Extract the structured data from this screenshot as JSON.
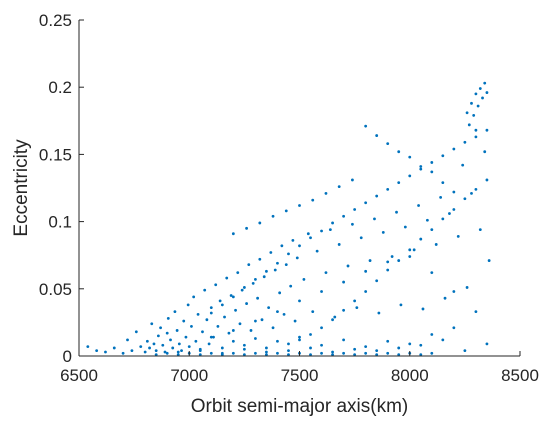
{
  "chart_data": {
    "type": "scatter",
    "title": "",
    "xlabel": "Orbit semi-major axis(km)",
    "ylabel": "Eccentricity",
    "xlim": [
      6500,
      8500
    ],
    "ylim": [
      0,
      0.25
    ],
    "x_ticks": [
      6500,
      7000,
      7500,
      8000,
      8500
    ],
    "y_ticks": [
      0,
      0.05,
      0.1,
      0.15,
      0.2,
      0.25
    ],
    "x_tick_labels": [
      "6500",
      "7000",
      "7500",
      "8000",
      "8500"
    ],
    "y_tick_labels": [
      "0",
      "0.05",
      "0.1",
      "0.15",
      "0.2",
      "0.25"
    ],
    "grid": false,
    "legend": "none",
    "marker_color": "#0072BD",
    "axis_color": "#262626",
    "series": [
      {
        "x": [
          6540,
          6580,
          6620,
          6660,
          6700,
          6720,
          6740,
          6760,
          6780,
          6800,
          6810,
          6820,
          6830,
          6840,
          6850,
          6860,
          6870,
          6880,
          6890,
          6900,
          6905,
          6915,
          6925,
          6935,
          6945,
          6955,
          6965,
          6975,
          6985,
          6995,
          7000,
          7010,
          7020,
          7030,
          7040,
          7050,
          7060,
          7070,
          7080,
          7090,
          7100,
          7110,
          7120,
          7130,
          7140,
          7150,
          7160,
          7170,
          7180,
          7190,
          7200,
          7210,
          7220,
          7230,
          7240,
          7250,
          7260,
          7270,
          7280,
          7290,
          7300,
          7310,
          7320,
          7330,
          7340,
          7350,
          7360,
          7370,
          7380,
          7390,
          7400,
          7410,
          7420,
          7430,
          7440,
          7450,
          7460,
          7470,
          7480,
          7490,
          7500,
          7520,
          7540,
          7560,
          7580,
          7600,
          7620,
          7640,
          7660,
          7680,
          7700,
          7720,
          7740,
          7760,
          7780,
          7800,
          7820,
          7840,
          7860,
          7880,
          7900,
          7920,
          7940,
          7960,
          7980,
          8000,
          8020,
          8040,
          8060,
          8080,
          8100,
          8120,
          8140,
          8160,
          8180,
          8200,
          8220,
          8240,
          8260,
          8280,
          8300,
          8320,
          8340,
          8360,
          6950,
          7050,
          7150,
          7250,
          7350,
          7450,
          7550,
          7650,
          7750,
          7850,
          7950,
          8050,
          8150,
          8250,
          8350,
          7100,
          7200,
          7300,
          7400,
          7500,
          7600,
          7700,
          7800,
          7900,
          8000,
          8100,
          8200,
          8300,
          7100,
          7150,
          7200,
          7250,
          7300,
          7350,
          7400,
          7450,
          7500,
          7550,
          7600,
          7650,
          7700,
          7750,
          7800,
          7850,
          7900,
          7950,
          8000,
          8050,
          8100,
          8150,
          8200,
          8250,
          8300,
          8350,
          7500,
          7550,
          7600,
          7650,
          7700,
          7750,
          7800,
          7850,
          7900,
          7950,
          8000,
          8050,
          8100,
          8150,
          8200,
          8250,
          8300,
          8350,
          8260,
          8280,
          8300,
          8320,
          8340,
          8270,
          8290,
          8310,
          8330,
          8350,
          7800,
          7850,
          7900,
          7950,
          8000,
          8050,
          8100,
          8150,
          8200,
          6850,
          6900,
          6950,
          7000,
          7050,
          7100,
          7150,
          7200,
          7250,
          7300,
          7350,
          7400,
          7450,
          7500,
          7550,
          7600,
          7650,
          7700,
          7750,
          7800,
          7850,
          7900,
          7950,
          8000,
          8050,
          8100,
          7200,
          7260,
          7320,
          7380,
          7440,
          7500,
          7560,
          7620,
          7680,
          7740
        ],
        "y": [
          0.007,
          0.004,
          0.003,
          0.006,
          0.002,
          0.012,
          0.004,
          0.018,
          0.007,
          0.003,
          0.011,
          0.006,
          0.024,
          0.009,
          0.004,
          0.015,
          0.021,
          0.008,
          0.003,
          0.017,
          0.028,
          0.012,
          0.006,
          0.033,
          0.019,
          0.009,
          0.004,
          0.026,
          0.014,
          0.038,
          0.007,
          0.022,
          0.044,
          0.011,
          0.031,
          0.005,
          0.018,
          0.049,
          0.027,
          0.009,
          0.036,
          0.014,
          0.053,
          0.022,
          0.041,
          0.006,
          0.029,
          0.058,
          0.017,
          0.045,
          0.011,
          0.034,
          0.062,
          0.024,
          0.049,
          0.008,
          0.039,
          0.068,
          0.019,
          0.054,
          0.013,
          0.043,
          0.072,
          0.027,
          0.059,
          0.006,
          0.036,
          0.077,
          0.021,
          0.064,
          0.011,
          0.047,
          0.082,
          0.031,
          0.068,
          0.009,
          0.052,
          0.086,
          0.026,
          0.073,
          0.014,
          0.057,
          0.091,
          0.033,
          0.078,
          0.008,
          0.062,
          0.094,
          0.029,
          0.083,
          0.012,
          0.067,
          0.098,
          0.036,
          0.088,
          0.007,
          0.071,
          0.102,
          0.032,
          0.092,
          0.011,
          0.074,
          0.107,
          0.038,
          0.096,
          0.009,
          0.079,
          0.112,
          0.035,
          0.101,
          0.016,
          0.083,
          0.118,
          0.043,
          0.106,
          0.021,
          0.089,
          0.142,
          0.051,
          0.121,
          0.168,
          0.094,
          0.152,
          0.071,
          0.003,
          0.004,
          0.002,
          0.005,
          0.003,
          0.004,
          0.006,
          0.003,
          0.005,
          0.004,
          0.006,
          0.008,
          0.012,
          0.004,
          0.009,
          0.014,
          0.019,
          0.026,
          0.033,
          0.041,
          0.048,
          0.055,
          0.063,
          0.07,
          0.074,
          0.062,
          0.048,
          0.033,
          0.032,
          0.038,
          0.044,
          0.051,
          0.057,
          0.063,
          0.069,
          0.076,
          0.082,
          0.088,
          0.093,
          0.099,
          0.104,
          0.109,
          0.114,
          0.119,
          0.124,
          0.129,
          0.134,
          0.139,
          0.144,
          0.149,
          0.154,
          0.159,
          0.163,
          0.168,
          0.012,
          0.016,
          0.021,
          0.027,
          0.034,
          0.041,
          0.048,
          0.056,
          0.064,
          0.071,
          0.079,
          0.087,
          0.094,
          0.102,
          0.109,
          0.117,
          0.124,
          0.131,
          0.181,
          0.188,
          0.195,
          0.199,
          0.203,
          0.172,
          0.179,
          0.186,
          0.192,
          0.196,
          0.171,
          0.164,
          0.158,
          0.152,
          0.148,
          0.141,
          0.137,
          0.129,
          0.122,
          0.001,
          0.002,
          0.001,
          0.002,
          0.001,
          0.002,
          0.001,
          0.002,
          0.001,
          0.002,
          0.001,
          0.002,
          0.001,
          0.002,
          0.001,
          0.002,
          0.001,
          0.002,
          0.001,
          0.002,
          0.001,
          0.002,
          0.001,
          0.002,
          0.001,
          0.002,
          0.091,
          0.095,
          0.099,
          0.104,
          0.108,
          0.112,
          0.116,
          0.121,
          0.126,
          0.131
        ]
      }
    ]
  }
}
